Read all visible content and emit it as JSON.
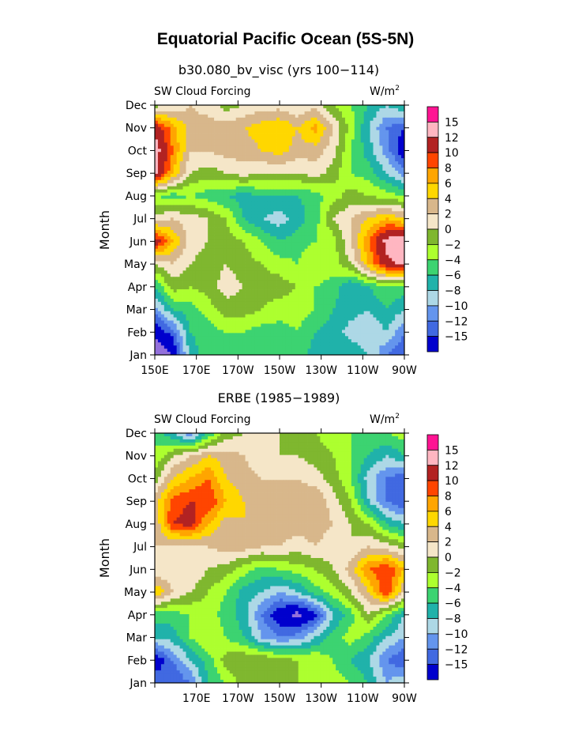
{
  "title": "Equatorial Pacific Ocean (5S-5N)",
  "chart_data": [
    {
      "type": "heatmap",
      "title": "b30.080_bv_visc (yrs 100−114)",
      "left_label": "SW Cloud Forcing",
      "right_label": "W/m",
      "right_label_sup": "2",
      "ylabel": "Month",
      "xlabel": "",
      "x": [
        "150E",
        "170E",
        "170W",
        "150W",
        "130W",
        "110W",
        "90W"
      ],
      "y": [
        "Jan",
        "Feb",
        "Mar",
        "Apr",
        "May",
        "Jun",
        "Jul",
        "Aug",
        "Sep",
        "Oct",
        "Nov",
        "Dec"
      ],
      "colorbar_labels": [
        "15",
        "12",
        "10",
        "8",
        "6",
        "4",
        "2",
        "0",
        "−2",
        "−4",
        "−6",
        "−8",
        "−10",
        "−12",
        "−15"
      ],
      "values": [
        [
          -18,
          -15,
          -5,
          -3,
          -2,
          -3,
          -4,
          -4,
          -3,
          -5,
          -4,
          -4,
          -6,
          -10,
          -12
        ],
        [
          -14,
          -11,
          -4,
          -3,
          -2,
          -2,
          -3,
          -3,
          -2,
          -4,
          -5,
          -7,
          -8,
          -6,
          -10
        ],
        [
          -9,
          -4,
          -3,
          -1,
          1,
          1,
          0,
          -1,
          -1,
          -2,
          -4,
          -5,
          -6,
          -4,
          -6
        ],
        [
          -4,
          1,
          0,
          1,
          3,
          2,
          1,
          1,
          0,
          -2,
          -3,
          -6,
          -4,
          -2,
          -3
        ],
        [
          2,
          4,
          2,
          1,
          2,
          1,
          0,
          -1,
          -2,
          0,
          -1,
          2,
          8,
          14,
          16
        ],
        [
          14,
          8,
          3,
          2,
          1,
          0,
          -2,
          -4,
          -3,
          -2,
          -1,
          4,
          10,
          16,
          18
        ],
        [
          3,
          4,
          3,
          2,
          0,
          -4,
          -6,
          -7,
          -5,
          -3,
          2,
          4,
          6,
          8,
          6
        ],
        [
          -2,
          -3,
          -2,
          -3,
          -4,
          -5,
          -4,
          -4,
          -4,
          -3,
          -1,
          1,
          0,
          -1,
          -2
        ],
        [
          16,
          8,
          2,
          1,
          2,
          3,
          2,
          2,
          2,
          3,
          1,
          -2,
          -3,
          -6,
          -9
        ],
        [
          17,
          10,
          4,
          4,
          5,
          5,
          6,
          7,
          5,
          5,
          3,
          -2,
          -5,
          -9,
          -14
        ],
        [
          14,
          9,
          5,
          5,
          5,
          6,
          7,
          8,
          6,
          9,
          4,
          -1,
          -6,
          -10,
          -12
        ],
        [
          1,
          2,
          4,
          3,
          1,
          2,
          3,
          3,
          2,
          3,
          0,
          -2,
          -4,
          -6,
          -4
        ]
      ]
    },
    {
      "type": "heatmap",
      "title": "ERBE (1985−1989)",
      "left_label": "SW Cloud Forcing",
      "right_label": "W/m",
      "right_label_sup": "2",
      "ylabel": "Month",
      "xlabel": "",
      "x": [
        "",
        "170E",
        "170W",
        "150W",
        "130W",
        "110W",
        "90W"
      ],
      "y": [
        "Jan",
        "Feb",
        "Mar",
        "Apr",
        "May",
        "Jun",
        "Jul",
        "Aug",
        "Sep",
        "Oct",
        "Nov",
        "Dec"
      ],
      "colorbar_labels": [
        "15",
        "12",
        "10",
        "8",
        "6",
        "4",
        "2",
        "0",
        "−2",
        "−4",
        "−6",
        "−8",
        "−10",
        "−12",
        "−15"
      ],
      "values": [
        [
          -10,
          -12,
          -10,
          -4,
          -2,
          1,
          2,
          1,
          0,
          -2,
          -1,
          -2,
          -4,
          -8,
          -6
        ],
        [
          -14,
          -10,
          -6,
          -3,
          1,
          2,
          2,
          1,
          0,
          0,
          -2,
          -4,
          -6,
          -10,
          -12
        ],
        [
          -6,
          -5,
          -2,
          0,
          -2,
          -4,
          -8,
          -10,
          -9,
          -6,
          -3,
          -1,
          -3,
          -6,
          -8
        ],
        [
          -3,
          -3,
          -2,
          -1,
          -3,
          -5,
          -10,
          -14,
          -16,
          -13,
          -6,
          -3,
          2,
          -2,
          -6
        ],
        [
          8,
          4,
          2,
          0,
          -2,
          -5,
          -6,
          -8,
          -6,
          -3,
          -1,
          2,
          6,
          12,
          4
        ],
        [
          2,
          3,
          4,
          2,
          1,
          -1,
          -3,
          -2,
          -1,
          0,
          2,
          5,
          10,
          12,
          8
        ],
        [
          4,
          3,
          3,
          4,
          5,
          5,
          4,
          4,
          3,
          4,
          3,
          2,
          4,
          3,
          1
        ],
        [
          4,
          12,
          13,
          8,
          5,
          6,
          6,
          5,
          5,
          5,
          4,
          2,
          0,
          -4,
          -6
        ],
        [
          5,
          11,
          12,
          12,
          8,
          6,
          5,
          6,
          5,
          6,
          3,
          0,
          -6,
          -10,
          -12
        ],
        [
          1,
          6,
          8,
          10,
          6,
          5,
          4,
          4,
          4,
          3,
          1,
          -2,
          -7,
          -10,
          -12
        ],
        [
          -2,
          2,
          4,
          6,
          5,
          4,
          2,
          2,
          2,
          1,
          0,
          -2,
          -4,
          -6,
          -4
        ],
        [
          -2,
          -6,
          -10,
          -4,
          1,
          2,
          3,
          2,
          1,
          0,
          -1,
          -2,
          -2,
          -2,
          -1
        ]
      ]
    }
  ],
  "colors": {
    "levels": [
      "#9370db",
      "#0000cd",
      "#4169e1",
      "#6495ed",
      "#add8e6",
      "#20b2aa",
      "#3cd371",
      "#adff2f",
      "#7fb72f",
      "#f5e6c8",
      "#d8b78b",
      "#ffd700",
      "#ffa500",
      "#ff4500",
      "#b22222",
      "#ffb6c1",
      "#ff1493"
    ]
  }
}
